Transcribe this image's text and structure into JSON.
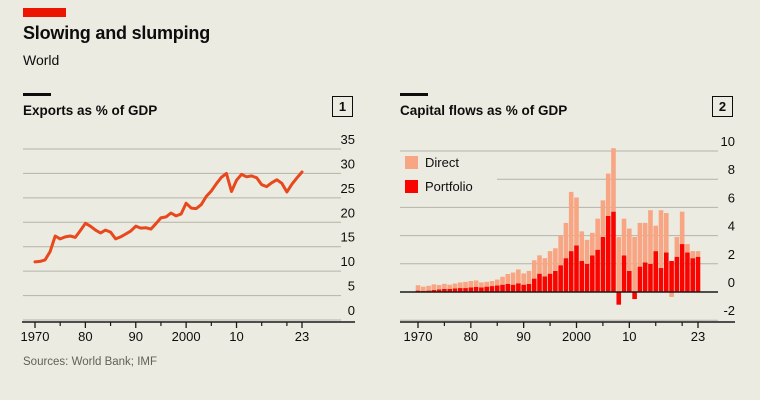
{
  "header": {
    "title": "Slowing and slumping",
    "subtitle": "World"
  },
  "footer": {
    "source": "Sources: World Bank; IMF"
  },
  "panels": [
    {
      "index": "1"
    },
    {
      "index": "2"
    }
  ],
  "colors": {
    "background": "#ecebe1",
    "tag_red": "#ec1500",
    "line_red": "#e8481c",
    "direct_salmon": "#f7a583",
    "portfolio_red": "#fa0400",
    "grid": "#b4b3a8",
    "axis_black": "#1a1a1a",
    "text": "#0d0d0d",
    "muted": "#61615a"
  },
  "chart_data": [
    {
      "type": "line",
      "title": "Exports as % of GDP",
      "x": [
        1970,
        1971,
        1972,
        1973,
        1974,
        1975,
        1976,
        1977,
        1978,
        1979,
        1980,
        1981,
        1982,
        1983,
        1984,
        1985,
        1986,
        1987,
        1988,
        1989,
        1990,
        1991,
        1992,
        1993,
        1994,
        1995,
        1996,
        1997,
        1998,
        1999,
        2000,
        2001,
        2002,
        2003,
        2004,
        2005,
        2006,
        2007,
        2008,
        2009,
        2010,
        2011,
        2012,
        2013,
        2014,
        2015,
        2016,
        2017,
        2018,
        2019,
        2020,
        2021,
        2022,
        2023
      ],
      "values": [
        11.9,
        12.0,
        12.3,
        14.0,
        17.2,
        16.6,
        17.0,
        17.2,
        16.9,
        18.3,
        19.8,
        19.2,
        18.4,
        17.8,
        18.4,
        18.0,
        16.6,
        17.0,
        17.6,
        18.2,
        19.2,
        18.8,
        18.9,
        18.6,
        19.7,
        20.9,
        21.1,
        21.9,
        21.3,
        21.7,
        23.9,
        22.9,
        22.8,
        23.6,
        25.3,
        26.4,
        27.9,
        29.2,
        30.0,
        26.3,
        28.6,
        29.8,
        29.3,
        29.5,
        29.1,
        27.7,
        27.3,
        28.1,
        28.7,
        28.0,
        26.2,
        27.8,
        29.1,
        30.3
      ],
      "xlabel": "",
      "ylabel": "",
      "ylim": [
        0,
        35
      ],
      "yticks": [
        0,
        5,
        10,
        15,
        20,
        25,
        30,
        35
      ],
      "xtick_major": [
        {
          "year": 1970,
          "label": "1970"
        },
        {
          "year": 1980,
          "label": "80"
        },
        {
          "year": 1990,
          "label": "90"
        },
        {
          "year": 2000,
          "label": "2000"
        },
        {
          "year": 2010,
          "label": "10"
        },
        {
          "year": 2023,
          "label": "23"
        }
      ],
      "xtick_minor": [
        1975,
        1985,
        1995,
        2005,
        2015,
        2020
      ],
      "grid": "on",
      "legend_position": "none"
    },
    {
      "type": "bar",
      "stacked": true,
      "title": "Capital flows as % of GDP",
      "categories": [
        1970,
        1971,
        1972,
        1973,
        1974,
        1975,
        1976,
        1977,
        1978,
        1979,
        1980,
        1981,
        1982,
        1983,
        1984,
        1985,
        1986,
        1987,
        1988,
        1989,
        1990,
        1991,
        1992,
        1993,
        1994,
        1995,
        1996,
        1997,
        1998,
        1999,
        2000,
        2001,
        2002,
        2003,
        2004,
        2005,
        2006,
        2007,
        2008,
        2009,
        2010,
        2011,
        2012,
        2013,
        2014,
        2015,
        2016,
        2017,
        2018,
        2019,
        2020,
        2021,
        2022,
        2023
      ],
      "series": [
        {
          "name": "Direct",
          "values": [
            0.38,
            0.3,
            0.34,
            0.4,
            0.32,
            0.36,
            0.3,
            0.34,
            0.4,
            0.44,
            0.46,
            0.46,
            0.36,
            0.34,
            0.36,
            0.42,
            0.56,
            0.7,
            0.86,
            0.98,
            0.8,
            0.92,
            1.3,
            1.3,
            1.3,
            1.6,
            1.6,
            2.1,
            2.5,
            4.2,
            3.4,
            2.1,
            1.7,
            1.6,
            2.2,
            2.6,
            3.0,
            4.5,
            3.9,
            2.6,
            3.0,
            3.9,
            3.1,
            2.8,
            3.8,
            1.8,
            4.1,
            2.8,
            -0.35,
            1.4,
            2.3,
            0.6,
            0.5,
            0.4
          ]
        },
        {
          "name": "Portfolio",
          "values": [
            0.1,
            0.08,
            0.1,
            0.14,
            0.18,
            0.22,
            0.22,
            0.26,
            0.28,
            0.28,
            0.32,
            0.36,
            0.32,
            0.38,
            0.42,
            0.46,
            0.52,
            0.58,
            0.52,
            0.62,
            0.52,
            0.58,
            0.95,
            1.3,
            1.1,
            1.3,
            1.5,
            1.9,
            2.4,
            2.9,
            3.3,
            2.2,
            2.0,
            2.6,
            3.0,
            3.9,
            5.4,
            5.7,
            -0.9,
            2.6,
            1.5,
            -0.5,
            1.8,
            2.1,
            2.0,
            2.9,
            1.7,
            2.8,
            2.2,
            2.5,
            3.4,
            2.8,
            2.4,
            2.5
          ]
        }
      ],
      "xlabel": "",
      "ylabel": "",
      "ylim": [
        -2,
        10
      ],
      "yticks": [
        -2,
        0,
        2,
        4,
        6,
        8,
        10
      ],
      "xtick_major": [
        {
          "year": 1970,
          "label": "1970"
        },
        {
          "year": 1980,
          "label": "80"
        },
        {
          "year": 1990,
          "label": "90"
        },
        {
          "year": 2000,
          "label": "2000"
        },
        {
          "year": 2010,
          "label": "10"
        },
        {
          "year": 2023,
          "label": "23"
        }
      ],
      "xtick_minor": [
        1975,
        1985,
        1995,
        2005,
        2015,
        2020
      ],
      "grid": "on",
      "legend_position": "top-left"
    }
  ]
}
